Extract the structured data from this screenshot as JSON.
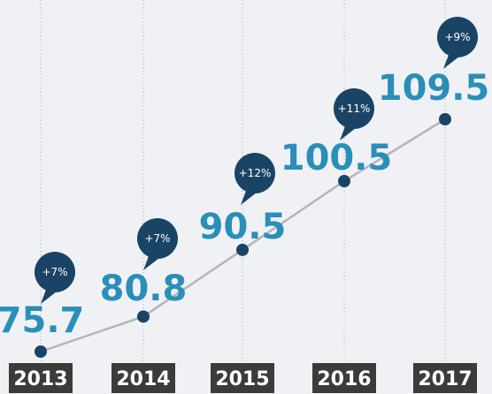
{
  "chart_data": {
    "type": "line",
    "x": [
      "2013",
      "2014",
      "2015",
      "2016",
      "2017"
    ],
    "values": [
      75.7,
      80.8,
      90.5,
      100.5,
      109.5
    ],
    "value_labels": [
      "75.7",
      "80.8",
      "90.5",
      "100.5",
      "109.5"
    ],
    "growth_labels": [
      "+7%",
      "+7%",
      "+12%",
      "+11%",
      "+9%"
    ],
    "ylim": [
      70,
      114
    ],
    "grid": true,
    "title": "",
    "xlabel": "",
    "ylabel": ""
  },
  "colors": {
    "background": "#f0f1f5",
    "line": "#b5b5b5",
    "point": "#1a4466",
    "bubble": "#1a4466",
    "value_text": "#2a8fb8",
    "year_bg": "#3b3b3b",
    "year_text": "#ffffff",
    "gridline": "#a9a9a9"
  }
}
